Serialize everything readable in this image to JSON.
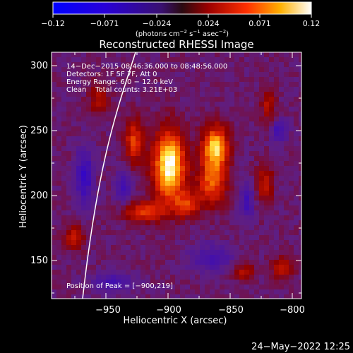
{
  "colorbar": {
    "ticks": [
      "−0.12",
      "−0.071",
      "−0.024",
      "0.024",
      "0.071",
      "0.12"
    ],
    "unit_parts": [
      "(photons cm",
      "−2",
      " s",
      "−1",
      " asec",
      "−2",
      ")"
    ]
  },
  "plot": {
    "title": "Reconstructed RHESSI Image",
    "xlabel": "Heliocentric X (arcsec)",
    "ylabel": "Heliocentric Y (arcsec)",
    "x_ticks": [
      "−950",
      "−900",
      "−850",
      "−800"
    ],
    "y_ticks": [
      "300",
      "250",
      "200",
      "150"
    ]
  },
  "annotations": {
    "time_range": "14−Dec−2015 08:46:36.000 to 08:48:56.000",
    "detectors": "Detectors: 1F 5F 7F, Att 0",
    "energy": "Energy Range: 6.0 − 12.0 keV",
    "clean": "Clean    Total counts: 3.21E+03",
    "peak": "Position of Peak = [−900,219]"
  },
  "footer": {
    "date": "24−May−2022 12:25"
  },
  "colors": {
    "background": "#000000",
    "text": "#ffffff"
  }
}
